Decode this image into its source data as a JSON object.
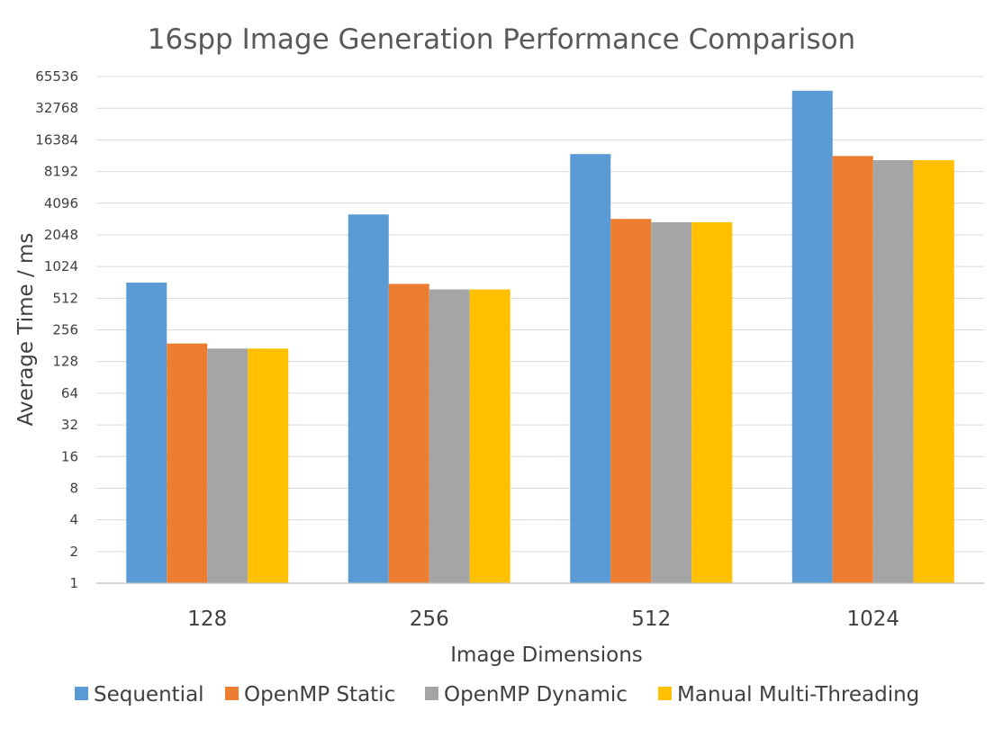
{
  "chart_data": {
    "type": "bar",
    "title": "16spp Image Generation Performance Comparison",
    "xlabel": "Image Dimensions",
    "ylabel": "Average Time / ms",
    "yscale": "log2",
    "ylim": [
      1,
      65536
    ],
    "yticks": [
      "1",
      "2",
      "4",
      "8",
      "16",
      "32",
      "64",
      "128",
      "256",
      "512",
      "1024",
      "2048",
      "4096",
      "8192",
      "16384",
      "32768",
      "65536"
    ],
    "grid": true,
    "legend_position": "bottom",
    "categories": [
      "128",
      "256",
      "512",
      "1024"
    ],
    "series": [
      {
        "name": "Sequential",
        "color": "#5B9BD5",
        "values": [
          720,
          3200,
          12000,
          48000
        ]
      },
      {
        "name": "OpenMP Static",
        "color": "#ED7D31",
        "values": [
          190,
          700,
          2900,
          11500
        ]
      },
      {
        "name": "OpenMP Dynamic",
        "color": "#A5A5A5",
        "values": [
          170,
          620,
          2700,
          10500
        ]
      },
      {
        "name": "Manual Multi-Threading",
        "color": "#FFC000",
        "values": [
          170,
          620,
          2700,
          10500
        ]
      }
    ]
  }
}
